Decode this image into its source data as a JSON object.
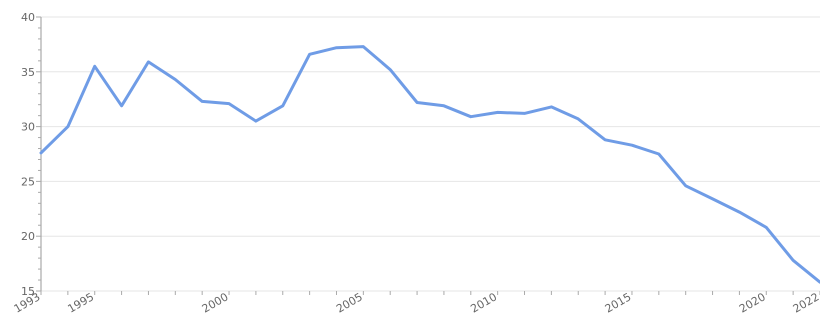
{
  "chart_data": {
    "type": "line",
    "title": "",
    "xlabel": "",
    "ylabel": "",
    "ylim": [
      15,
      40
    ],
    "xlim": [
      1993,
      2022
    ],
    "y_ticks": [
      "15",
      "20",
      "25",
      "30",
      "35",
      "40"
    ],
    "x_ticks": [
      "1993",
      "1995",
      "2000",
      "2005",
      "2010",
      "2015",
      "2020",
      "2022"
    ],
    "grid": true,
    "legend": "none",
    "line_color": "#6f9ce6",
    "series": [
      {
        "x": [
          1993,
          1994,
          1995,
          1996,
          1997,
          1998,
          1999,
          2000,
          2001,
          2002,
          2003,
          2004,
          2005,
          2006,
          2007,
          2008,
          2009,
          2010,
          2011,
          2012,
          2013,
          2014,
          2015,
          2016,
          2017,
          2018,
          2019,
          2020,
          2021,
          2022
        ],
        "values": [
          27.6,
          30.0,
          35.5,
          31.9,
          35.9,
          34.3,
          32.3,
          32.1,
          30.5,
          31.9,
          36.6,
          37.2,
          37.3,
          35.2,
          32.2,
          31.9,
          30.9,
          31.3,
          31.2,
          31.8,
          30.7,
          28.8,
          28.3,
          27.5,
          24.6,
          23.4,
          22.2,
          20.8,
          17.8,
          15.8
        ]
      }
    ]
  }
}
